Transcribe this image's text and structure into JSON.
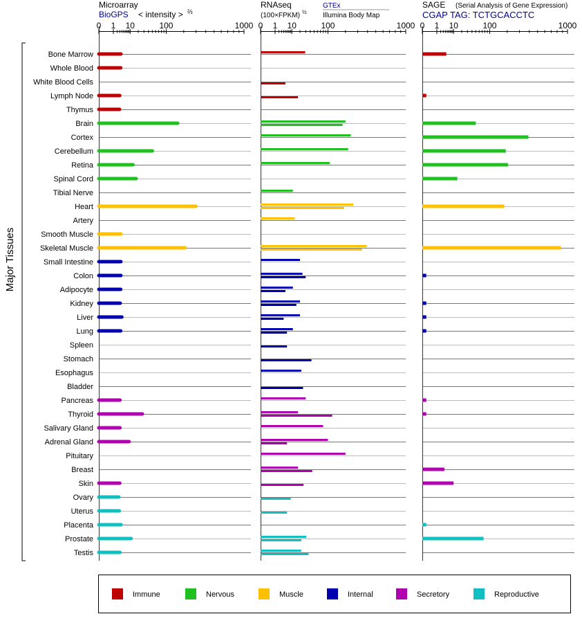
{
  "colors": {
    "immune": "#c00000",
    "nervous": "#1fc01f",
    "muscle": "#ffc000",
    "internal": "#0000b0",
    "secretory": "#b000b0",
    "reproductive": "#10c0c0"
  },
  "header": {
    "microarray_title": "Microarray",
    "microarray_source": "BioGPS",
    "microarray_unit": "< intensity >",
    "microarray_unit_exp": "⅔",
    "rnaseq_title": "RNAseq",
    "rnaseq_unit": "(100×FPKM)",
    "rnaseq_unit_exp": "½",
    "rnaseq_source1": "GTEx",
    "rnaseq_source2": "Illumina Body Map",
    "sage_title": "SAGE",
    "sage_subtitle": "(Serial Analysis of Gene Expression)",
    "sage_tag": "CGAP TAG: TCTGCACCTC"
  },
  "ylabel": "Major Tissues",
  "legend": [
    {
      "label": "Immune",
      "color": "#c00000"
    },
    {
      "label": "Nervous",
      "color": "#1fc01f"
    },
    {
      "label": "Muscle",
      "color": "#ffc000"
    },
    {
      "label": "Internal",
      "color": "#0000b0"
    },
    {
      "label": "Secretory",
      "color": "#b000b0"
    },
    {
      "label": "Reproductive",
      "color": "#10c0c0"
    }
  ],
  "chart_data": {
    "type": "bar",
    "scale": "power",
    "x_ticks": [
      "0",
      "1",
      "10",
      "100",
      "1000"
    ],
    "x_tick_values": [
      0,
      1,
      10,
      100,
      1000
    ],
    "xlim": [
      0,
      1000
    ],
    "categories": [
      "Bone Marrow",
      "Whole Blood",
      "White Blood Cells",
      "Lymph Node",
      "Thymus",
      "Brain",
      "Cortex",
      "Cerebellum",
      "Retina",
      "Spinal Cord",
      "Tibial Nerve",
      "Heart",
      "Artery",
      "Smooth Muscle",
      "Skeletal Muscle",
      "Small Intestine",
      "Colon",
      "Adipocyte",
      "Kidney",
      "Liver",
      "Lung",
      "Spleen",
      "Stomach",
      "Esophagus",
      "Bladder",
      "Pancreas",
      "Thyroid",
      "Salivary Gland",
      "Adrenal Gland",
      "Pituitary",
      "Breast",
      "Skin",
      "Ovary",
      "Uterus",
      "Placenta",
      "Prostate",
      "Testis"
    ],
    "groups": [
      "immune",
      "immune",
      "immune",
      "immune",
      "immune",
      "nervous",
      "nervous",
      "nervous",
      "nervous",
      "nervous",
      "nervous",
      "muscle",
      "muscle",
      "muscle",
      "muscle",
      "internal",
      "internal",
      "internal",
      "internal",
      "internal",
      "internal",
      "internal",
      "internal",
      "internal",
      "internal",
      "secretory",
      "secretory",
      "secretory",
      "secretory",
      "secretory",
      "secretory",
      "secretory",
      "reproductive",
      "reproductive",
      "reproductive",
      "reproductive",
      "reproductive"
    ],
    "panels": [
      {
        "name": "Microarray",
        "values": [
          3.5,
          3.4,
          null,
          3.0,
          2.9,
          160,
          null,
          50,
          13,
          17,
          null,
          300,
          null,
          3.5,
          210,
          3.5,
          3.5,
          3.4,
          3.2,
          4.0,
          3.4,
          null,
          null,
          null,
          null,
          3.1,
          27,
          3.1,
          9,
          null,
          null,
          3.0,
          2.6,
          2.8,
          3.6,
          11,
          3.1
        ]
      },
      {
        "name": "RNAseq GTEx",
        "values": [
          29,
          null,
          null,
          null,
          null,
          200,
          240,
          220,
          108,
          null,
          11,
          260,
          13,
          null,
          390,
          20,
          24,
          11,
          20,
          20,
          11,
          null,
          null,
          22,
          null,
          30,
          17,
          80,
          100,
          200,
          17,
          null,
          null,
          null,
          null,
          31,
          22
        ]
      },
      {
        "name": "RNAseq Illumina Body Map",
        "values": [
          null,
          null,
          5,
          17,
          null,
          180,
          null,
          null,
          null,
          null,
          null,
          190,
          null,
          null,
          340,
          null,
          30,
          5,
          15,
          4,
          6,
          6,
          43,
          null,
          25,
          null,
          120,
          null,
          6,
          null,
          45,
          26,
          9,
          6,
          null,
          22,
          36
        ]
      },
      {
        "name": "SAGE",
        "values": [
          4.5,
          null,
          null,
          0.02,
          null,
          50,
          390,
          190,
          205,
          14,
          null,
          180,
          null,
          null,
          870,
          null,
          0.02,
          null,
          0.02,
          0.02,
          0.02,
          null,
          null,
          null,
          null,
          0.02,
          0.02,
          null,
          null,
          null,
          3.5,
          10,
          null,
          null,
          0.02,
          75,
          null
        ]
      }
    ]
  }
}
